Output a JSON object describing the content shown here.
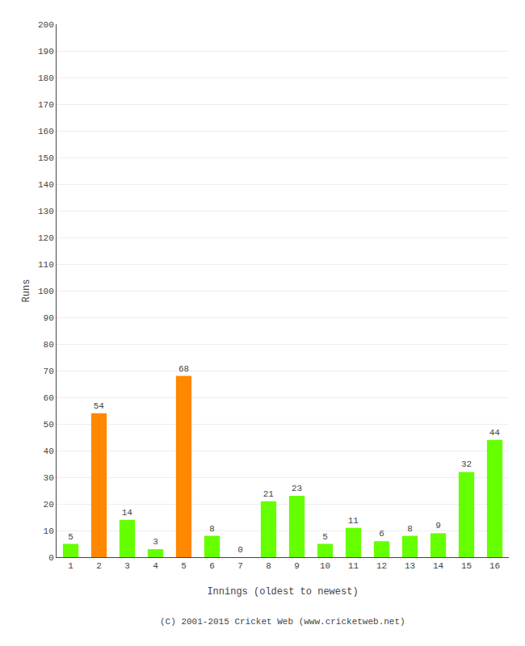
{
  "chart_data": {
    "type": "bar",
    "categories": [
      "1",
      "2",
      "3",
      "4",
      "5",
      "6",
      "7",
      "8",
      "9",
      "10",
      "11",
      "12",
      "13",
      "14",
      "15",
      "16"
    ],
    "values": [
      5,
      54,
      14,
      3,
      68,
      8,
      0,
      21,
      23,
      5,
      11,
      6,
      8,
      9,
      32,
      44
    ],
    "colors": [
      "#66ff00",
      "#ff8800",
      "#66ff00",
      "#66ff00",
      "#ff8800",
      "#66ff00",
      "#66ff00",
      "#66ff00",
      "#66ff00",
      "#66ff00",
      "#66ff00",
      "#66ff00",
      "#66ff00",
      "#66ff00",
      "#66ff00",
      "#66ff00"
    ],
    "xlabel": "Innings (oldest to newest)",
    "ylabel": "Runs",
    "ylim": [
      0,
      200
    ],
    "yticks": [
      0,
      10,
      20,
      30,
      40,
      50,
      60,
      70,
      80,
      90,
      100,
      110,
      120,
      130,
      140,
      150,
      160,
      170,
      180,
      190,
      200
    ],
    "grid": true,
    "data_labels": true,
    "annotations": [
      "(C) 2001-2015 Cricket Web (www.cricketweb.net)"
    ]
  }
}
